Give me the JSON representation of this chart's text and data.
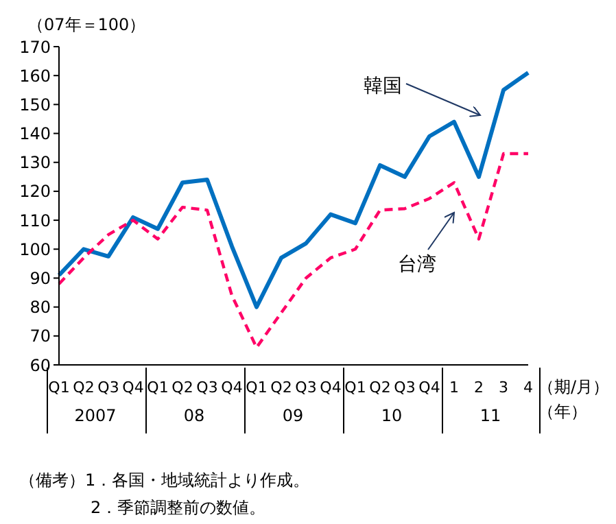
{
  "chart_data": {
    "type": "line",
    "ylabel": "（07年＝100）",
    "xlabel": "（期/月）",
    "categories": [
      "Q1",
      "Q2",
      "Q3",
      "Q4",
      "Q1",
      "Q2",
      "Q3",
      "Q4",
      "Q1",
      "Q2",
      "Q3",
      "Q4",
      "Q1",
      "Q2",
      "Q3",
      "Q4",
      "1",
      "2",
      "3",
      "4"
    ],
    "series": [
      {
        "name": "韓国",
        "color": "#0070c0",
        "line_style": "solid",
        "values": [
          91,
          100,
          97.5,
          111,
          107,
          123,
          124,
          101,
          80,
          97,
          102,
          112,
          109,
          129,
          125,
          139,
          144,
          125,
          155,
          161
        ]
      },
      {
        "name": "台湾",
        "color": "#ff0066",
        "line_style": "dashed",
        "values": [
          88,
          97,
          105,
          110,
          103.5,
          114.5,
          113.5,
          84,
          66,
          78,
          90,
          97,
          100,
          113.5,
          114,
          117.5,
          123,
          103.5,
          133,
          133
        ]
      }
    ],
    "ylim": [
      60,
      170
    ],
    "yticks": [
      60,
      70,
      80,
      90,
      100,
      110,
      120,
      130,
      140,
      150,
      160,
      170
    ],
    "grid": false,
    "legend": false,
    "marker": "none",
    "annotations": [
      "2007",
      "08",
      "09",
      "10",
      "11",
      "（年）",
      "（備考）1．各国・地域統計より作成。",
      "2．季節調整前の数値。"
    ]
  }
}
